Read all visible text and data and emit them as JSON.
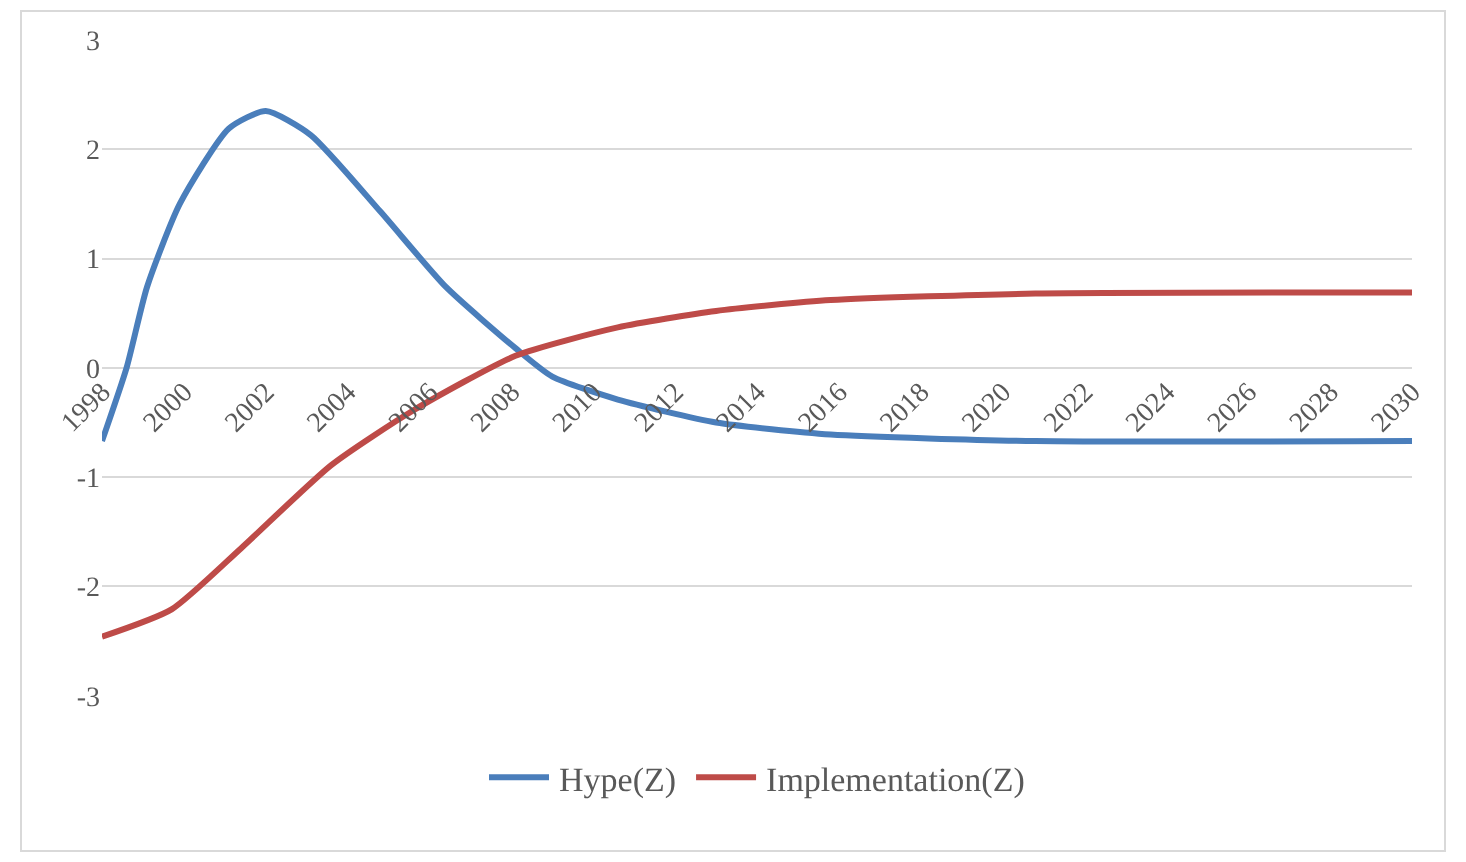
{
  "chart_data": {
    "type": "line",
    "xlim": [
      1998,
      2030
    ],
    "xticks": [
      1998,
      2000,
      2002,
      2004,
      2006,
      2008,
      2010,
      2012,
      2014,
      2016,
      2018,
      2020,
      2022,
      2024,
      2026,
      2028,
      2030
    ],
    "ylim": [
      -3,
      3
    ],
    "yticks": [
      -3,
      -2,
      -1,
      0,
      1,
      2,
      3
    ],
    "grid": "y",
    "legend": "bottom",
    "marker": "none",
    "line_style": "solid",
    "series": [
      {
        "name": "Hype(Z)",
        "color": "#4a7ebb",
        "x": [
          1998,
          1998.6,
          1999.1,
          1999.9,
          2001.1,
          2002,
          2003.1,
          2004.8,
          2006.4,
          2008.1,
          2009,
          2010.6,
          2013,
          2015.8,
          2020.8,
          2030
        ],
        "values": [
          -0.67,
          0,
          0.74,
          1.5,
          2.19,
          2.35,
          2.13,
          1.43,
          0.74,
          0.18,
          -0.08,
          -0.29,
          -0.5,
          -0.61,
          -0.67,
          -0.67
        ]
      },
      {
        "name": "Implementation(Z)",
        "color": "#be4b48",
        "x": [
          1998,
          1999.7,
          2001.4,
          2003.6,
          2005.6,
          2008.1,
          2010.6,
          2013,
          2015.8,
          2020.8,
          2030
        ],
        "values": [
          -2.46,
          -2.21,
          -1.65,
          -0.89,
          -0.39,
          0.11,
          0.37,
          0.52,
          0.62,
          0.68,
          0.69
        ]
      }
    ]
  }
}
